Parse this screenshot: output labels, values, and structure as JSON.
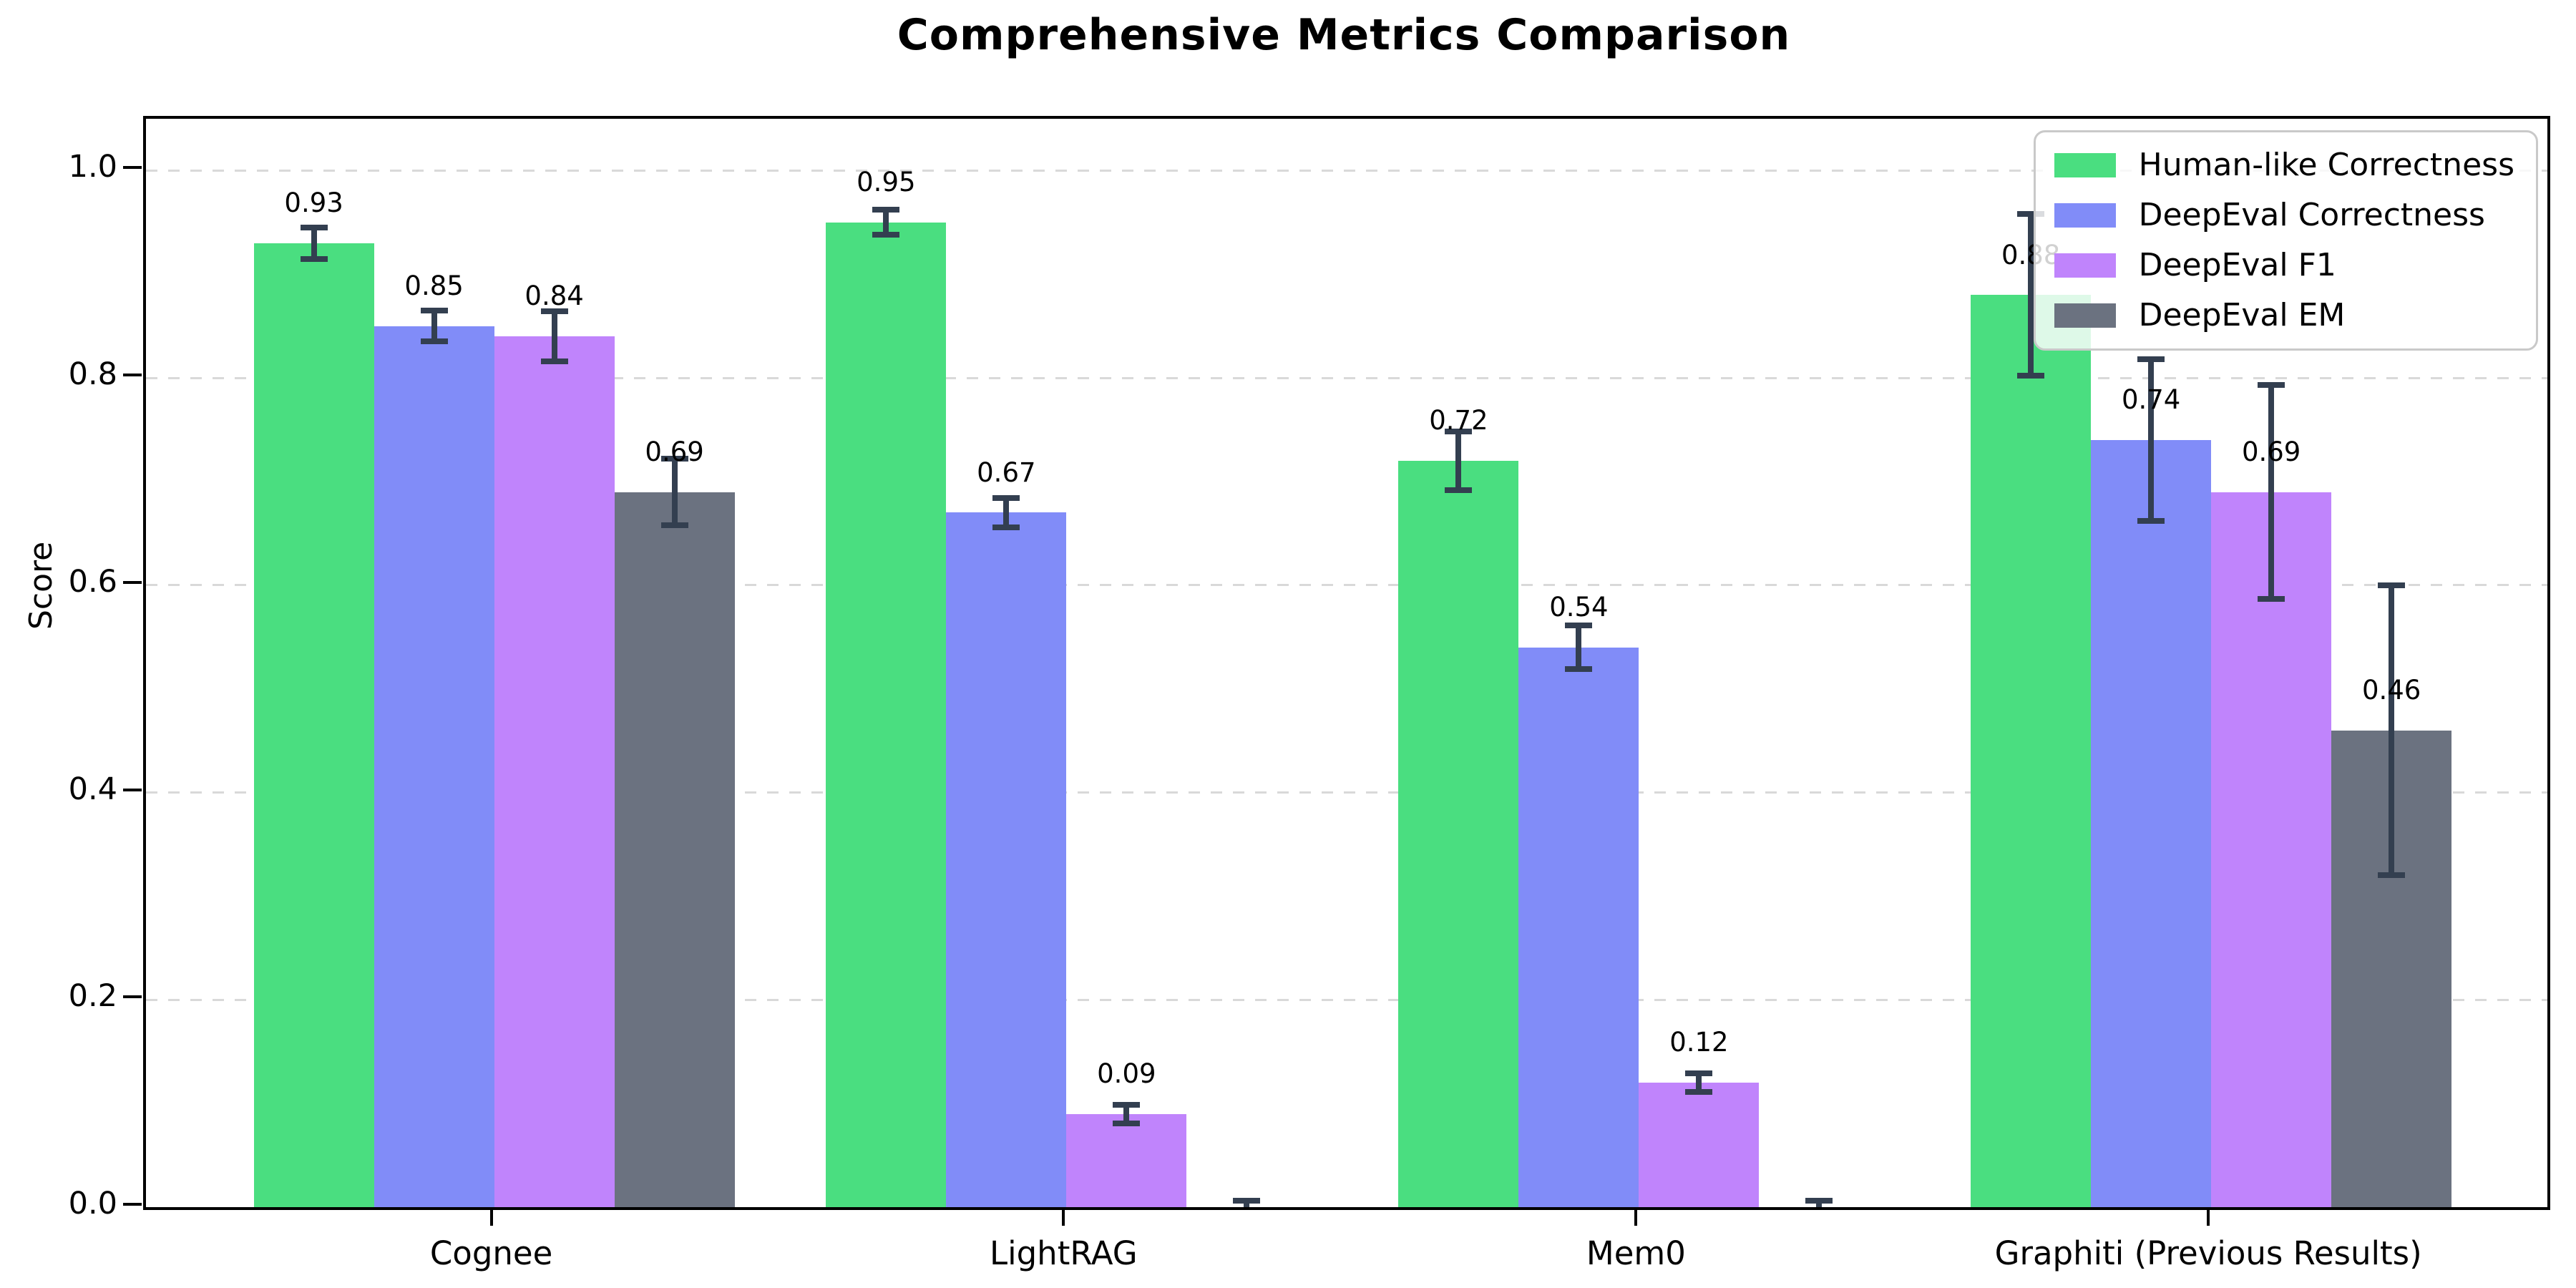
{
  "chart_data": {
    "type": "bar",
    "title": "Comprehensive Metrics Comparison",
    "xlabel": "",
    "ylabel": "Score",
    "categories": [
      "Cognee",
      "LightRAG",
      "Mem0",
      "Graphiti (Previous Results)"
    ],
    "series": [
      {
        "name": "Human-like Correctness",
        "color": "#4ade80",
        "values": [
          0.93,
          0.95,
          0.72,
          0.88
        ],
        "errors": [
          0.015,
          0.012,
          0.028,
          0.078
        ],
        "labels": [
          "0.93",
          "0.95",
          "0.72",
          "0.88"
        ]
      },
      {
        "name": "DeepEval Correctness",
        "color": "#818cf8",
        "values": [
          0.85,
          0.67,
          0.54,
          0.74
        ],
        "errors": [
          0.015,
          0.014,
          0.021,
          0.078
        ],
        "labels": [
          "0.85",
          "0.67",
          "0.54",
          "0.74"
        ]
      },
      {
        "name": "DeepEval F1",
        "color": "#c084fc",
        "values": [
          0.84,
          0.09,
          0.12,
          0.69
        ],
        "errors": [
          0.024,
          0.009,
          0.009,
          0.103
        ],
        "labels": [
          "0.84",
          "0.09",
          "0.12",
          "0.69"
        ]
      },
      {
        "name": "DeepEval EM",
        "color": "#6b7280",
        "values": [
          0.69,
          0.0,
          0.0,
          0.46
        ],
        "errors": [
          0.032,
          0.006,
          0.006,
          0.14
        ],
        "labels": [
          "0.69",
          "",
          "",
          "0.46"
        ]
      }
    ],
    "yticks": [
      0.0,
      0.2,
      0.4,
      0.6,
      0.8,
      1.0
    ],
    "ylim": [
      0,
      1.05
    ],
    "grid": "horizontal-dashed",
    "legend_position": "upper right"
  },
  "style_colors": {
    "error_bar": "#333f50",
    "gridline": "#d9d9d9",
    "axis_frame": "#000000",
    "legend_border": "#c9c9c9"
  }
}
